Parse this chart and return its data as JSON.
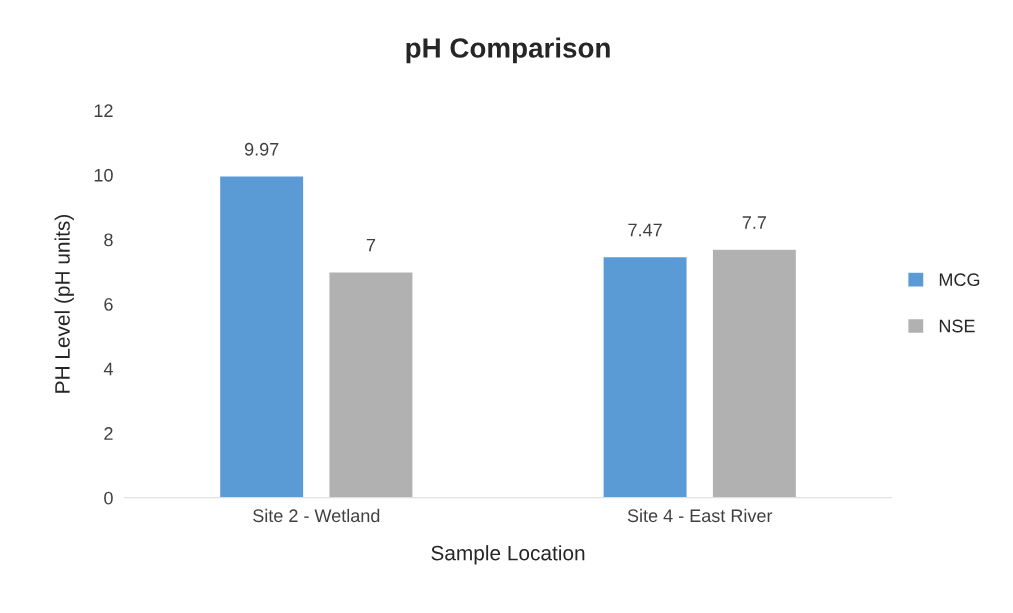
{
  "chart_data": {
    "type": "bar",
    "title": "pH Comparison",
    "xlabel": "Sample Location",
    "ylabel": "PH Level (pH units)",
    "categories": [
      "Site 2 - Wetland",
      "Site 4 - East River"
    ],
    "series": [
      {
        "name": "MCG",
        "color": "#5b9bd5",
        "values": [
          9.97,
          7.47
        ]
      },
      {
        "name": "NSE",
        "color": "#b1b1b2",
        "values": [
          7,
          7.7
        ]
      }
    ],
    "ylim": [
      0,
      12
    ],
    "yticks": [
      0,
      2,
      4,
      6,
      8,
      10,
      12
    ],
    "data_labels": true,
    "legend": "right"
  }
}
